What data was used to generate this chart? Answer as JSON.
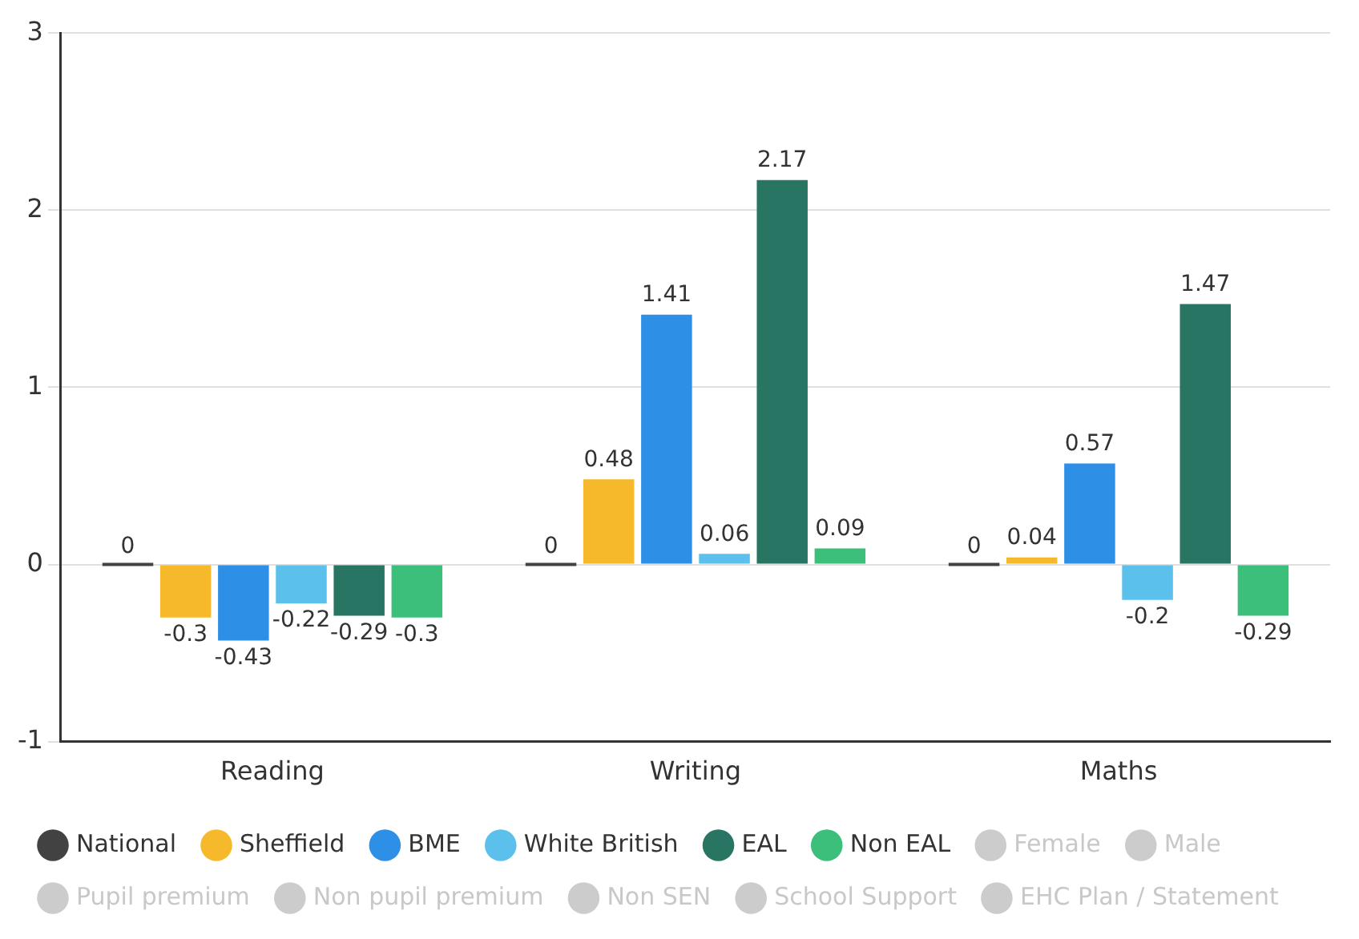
{
  "chart_data": {
    "type": "bar",
    "categories": [
      "Reading",
      "Writing",
      "Maths"
    ],
    "series": [
      {
        "name": "National",
        "color": "#424242",
        "values": [
          0,
          0,
          0
        ]
      },
      {
        "name": "Sheffield",
        "color": "#f6b92b",
        "values": [
          -0.3,
          0.48,
          0.04
        ]
      },
      {
        "name": "BME",
        "color": "#2d8fe6",
        "values": [
          -0.43,
          1.41,
          0.57
        ]
      },
      {
        "name": "White British",
        "color": "#5bc0eb",
        "values": [
          -0.22,
          0.06,
          -0.2
        ]
      },
      {
        "name": "EAL",
        "color": "#277562",
        "values": [
          -0.29,
          2.17,
          1.47
        ]
      },
      {
        "name": "Non EAL",
        "color": "#3cbf7a",
        "values": [
          -0.3,
          0.09,
          -0.29
        ]
      },
      {
        "name": "Female",
        "color": "#cccccc",
        "values": [
          null,
          null,
          null
        ]
      },
      {
        "name": "Male",
        "color": "#cccccc",
        "values": [
          null,
          null,
          null
        ]
      },
      {
        "name": "Pupil premium",
        "color": "#cccccc",
        "values": [
          null,
          null,
          null
        ]
      },
      {
        "name": "Non pupil premium",
        "color": "#cccccc",
        "values": [
          null,
          null,
          null
        ]
      },
      {
        "name": "Non SEN",
        "color": "#cccccc",
        "values": [
          null,
          null,
          null
        ]
      },
      {
        "name": "School Support",
        "color": "#cccccc",
        "values": [
          null,
          null,
          null
        ]
      },
      {
        "name": "EHC Plan / Statement",
        "color": "#cccccc",
        "values": [
          null,
          null,
          null
        ]
      }
    ],
    "ylim": [
      -1,
      3
    ],
    "yticks": [
      -1,
      0,
      1,
      2,
      3
    ],
    "grid": "y",
    "legend": "bottom",
    "data_labels": true
  }
}
